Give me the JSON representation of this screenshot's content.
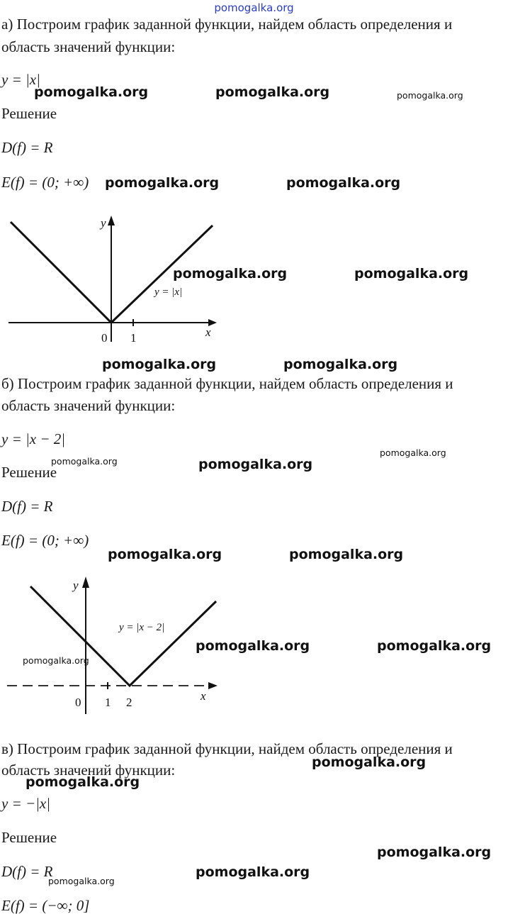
{
  "header_watermark": "pomogalka.org",
  "watermark": "pomogalka.org",
  "parts": [
    {
      "intro_line1": "а) Построим график заданной функции, найдем область определения и",
      "intro_line2": "область значений функции:",
      "function": "y = |x|",
      "solution_label": "Решение",
      "domain": "D(f) = R",
      "range": "E(f) = (0; +∞)",
      "graph": {
        "label": "y = |x|",
        "x_axis": "x",
        "y_axis": "y",
        "ticks": [
          "0",
          "1"
        ]
      }
    },
    {
      "intro_line1": "б) Построим график заданной функции, найдем область определения и",
      "intro_line2": "область значений функции:",
      "function": "y = |x − 2|",
      "solution_label": "Решение",
      "domain": "D(f) = R",
      "range": "E(f) = (0; +∞)",
      "graph": {
        "label": "y = |x − 2|",
        "x_axis": "x",
        "y_axis": "y",
        "ticks": [
          "0",
          "1",
          "2"
        ]
      }
    },
    {
      "intro_line1": "в) Построим график заданной функции, найдем область определения и",
      "intro_line2": "область значений функции:",
      "function": "y = −|x|",
      "solution_label": "Решение",
      "domain": "D(f) = R",
      "range": "E(f) = (−∞; 0]"
    }
  ],
  "colors": {
    "header_watermark": "#2a3cc8",
    "text": "#1a1a1a"
  }
}
